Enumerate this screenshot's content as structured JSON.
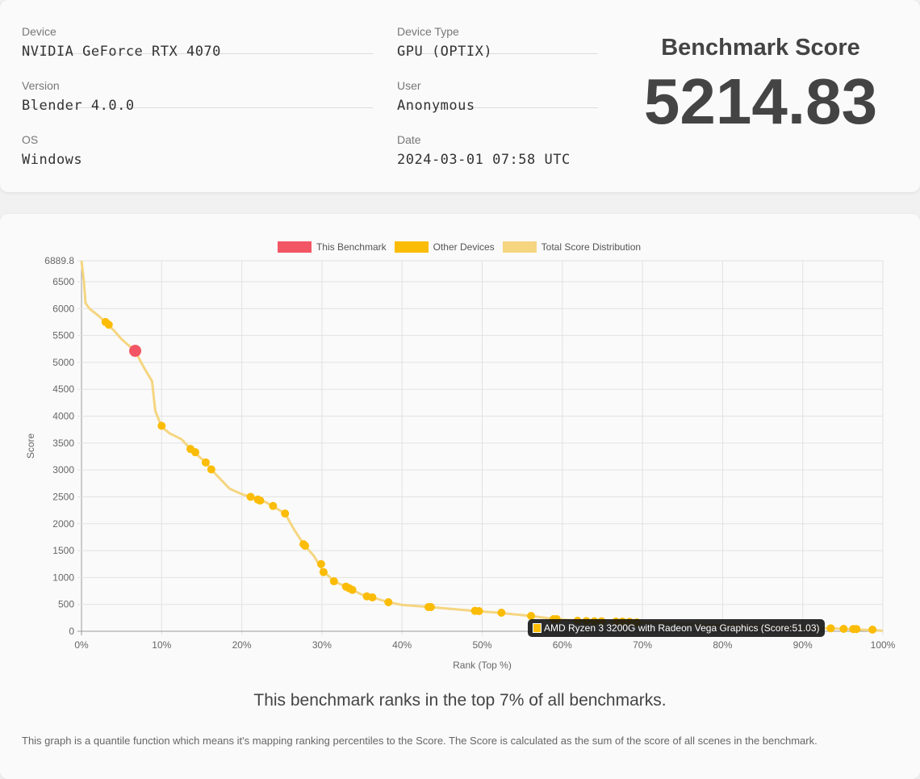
{
  "info": {
    "device_label": "Device",
    "device": "NVIDIA GeForce RTX 4070",
    "version_label": "Version",
    "version": "Blender 4.0.0",
    "os_label": "OS",
    "os": "Windows",
    "type_label": "Device Type",
    "type": "GPU (OPTIX)",
    "user_label": "User",
    "user": "Anonymous",
    "date_label": "Date",
    "date": "2024-03-01 07:58 UTC",
    "score_title": "Benchmark Score",
    "score": "5214.83"
  },
  "colors": {
    "this": "#f25563",
    "other": "#fbbc05",
    "dist": "#f5d580"
  },
  "chart_data": {
    "type": "line",
    "xlabel": "Rank (Top %)",
    "ylabel": "Score",
    "xlim": [
      0,
      100
    ],
    "ylim": [
      0,
      6889.8
    ],
    "xticks": [
      "0%",
      "10%",
      "20%",
      "30%",
      "40%",
      "50%",
      "60%",
      "70%",
      "80%",
      "90%",
      "100%"
    ],
    "yticks": [
      "0",
      "500",
      "1000",
      "1500",
      "2000",
      "2500",
      "3000",
      "3500",
      "4000",
      "4500",
      "5000",
      "5500",
      "6000",
      "6500",
      "6889.8"
    ],
    "legend": [
      "This Benchmark",
      "Other Devices",
      "Total Score Distribution"
    ],
    "legend_position": "top",
    "grid": true,
    "distribution": [
      [
        0,
        6889.8
      ],
      [
        0.3,
        6500
      ],
      [
        0.5,
        6100
      ],
      [
        1,
        6000
      ],
      [
        2,
        5880
      ],
      [
        3,
        5750
      ],
      [
        4,
        5600
      ],
      [
        5,
        5430
      ],
      [
        6,
        5300
      ],
      [
        6.7,
        5215
      ],
      [
        7.5,
        4980
      ],
      [
        8,
        4850
      ],
      [
        8.8,
        4650
      ],
      [
        9.2,
        4100
      ],
      [
        10,
        3800
      ],
      [
        11,
        3680
      ],
      [
        12.5,
        3570
      ],
      [
        13.6,
        3390
      ],
      [
        15.5,
        3140
      ],
      [
        16.2,
        3010
      ],
      [
        17,
        2880
      ],
      [
        18.5,
        2650
      ],
      [
        20,
        2550
      ],
      [
        21,
        2500
      ],
      [
        23,
        2400
      ],
      [
        25.4,
        2190
      ],
      [
        26.5,
        1900
      ],
      [
        27.7,
        1620
      ],
      [
        29,
        1400
      ],
      [
        30,
        1150
      ],
      [
        31.5,
        930
      ],
      [
        33,
        830
      ],
      [
        35,
        680
      ],
      [
        36.3,
        630
      ],
      [
        38.3,
        540
      ],
      [
        40,
        490
      ],
      [
        43.5,
        450
      ],
      [
        49,
        380
      ],
      [
        52,
        345
      ],
      [
        56,
        285
      ],
      [
        59,
        230
      ],
      [
        62,
        195
      ],
      [
        70,
        160
      ],
      [
        80,
        110
      ],
      [
        90,
        70
      ],
      [
        95,
        45
      ],
      [
        100,
        10
      ]
    ],
    "this_benchmark": [
      6.7,
      5214.83
    ],
    "other_devices": [
      [
        3.0,
        5750
      ],
      [
        3.4,
        5700
      ],
      [
        10.0,
        3820
      ],
      [
        13.6,
        3390
      ],
      [
        14.2,
        3330
      ],
      [
        15.5,
        3140
      ],
      [
        16.2,
        3010
      ],
      [
        21.1,
        2500
      ],
      [
        22.0,
        2450
      ],
      [
        22.3,
        2430
      ],
      [
        23.9,
        2330
      ],
      [
        25.4,
        2190
      ],
      [
        27.7,
        1620
      ],
      [
        27.9,
        1590
      ],
      [
        29.9,
        1250
      ],
      [
        30.2,
        1100
      ],
      [
        31.5,
        930
      ],
      [
        33.0,
        830
      ],
      [
        33.4,
        800
      ],
      [
        33.8,
        770
      ],
      [
        35.6,
        650
      ],
      [
        36.3,
        630
      ],
      [
        38.3,
        540
      ],
      [
        43.3,
        450
      ],
      [
        43.6,
        450
      ],
      [
        49.1,
        380
      ],
      [
        49.6,
        375
      ],
      [
        52.4,
        345
      ],
      [
        56.1,
        285
      ],
      [
        58.9,
        225
      ],
      [
        59.3,
        225
      ],
      [
        61.9,
        195
      ],
      [
        63.0,
        190
      ],
      [
        64.0,
        185
      ],
      [
        64.9,
        185
      ],
      [
        66.7,
        180
      ],
      [
        67.5,
        180
      ],
      [
        68.4,
        175
      ],
      [
        69.3,
        165
      ],
      [
        93.5,
        55
      ],
      [
        95.1,
        45
      ],
      [
        96.3,
        42
      ],
      [
        96.7,
        42
      ],
      [
        98.7,
        30
      ]
    ],
    "tooltip": "AMD Ryzen 3 3200G with Radeon Vega Graphics (Score:51.03)"
  },
  "rank_text": "This benchmark ranks in the top 7% of all benchmarks.",
  "note": "This graph is a quantile function which means it's mapping ranking percentiles to the Score. The Score is calculated as the sum of the score of all scenes in the benchmark."
}
